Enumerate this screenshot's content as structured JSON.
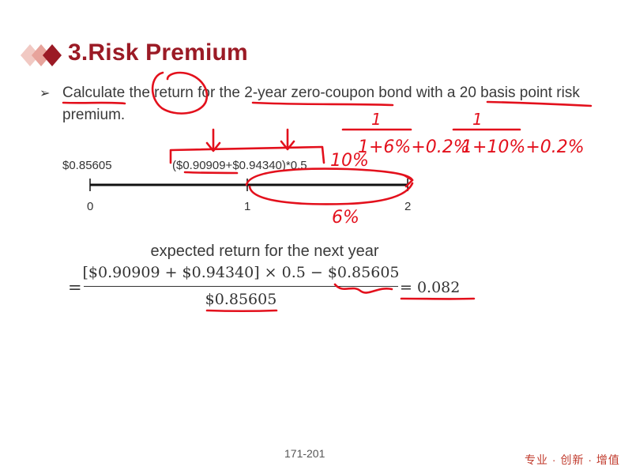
{
  "slide": {
    "title": "3.Risk Premium",
    "bullet": {
      "prefix": "Calculate the return for the ",
      "highlight": "2-year zero-coupon bond",
      "middle": "  with a ",
      "highlight2": "20 basis point",
      "suffix": " risk premium."
    }
  },
  "timeline": {
    "price_label": "$0.85605",
    "expected_label": "($0.90909+$0.94340)*0.5",
    "ticks": [
      "0",
      "1",
      "2"
    ]
  },
  "formula": {
    "caption": "expected return for the next year",
    "equals": "=",
    "numerator": "[$0.90909 + $0.94340] × 0.5 − $0.85605",
    "denominator": "$0.85605",
    "result": "= 0.082"
  },
  "annotations": {
    "fraction_1_numerator": "1",
    "fraction_1_denominator": "1+6%+0.2%",
    "fraction_2_numerator": "1",
    "fraction_2_denominator": "1+10%+0.2%",
    "rate_upper": "10%",
    "rate_lower": "6%"
  },
  "footer": {
    "page": "171-201",
    "brand": "专业 · 创新 · 增值"
  },
  "colors": {
    "title": "#9b1a25",
    "annotation": "#e3101c",
    "logo_dark": "#9b1a25",
    "logo_mid": "#d97a7a",
    "logo_light": "#f1c9c3"
  }
}
